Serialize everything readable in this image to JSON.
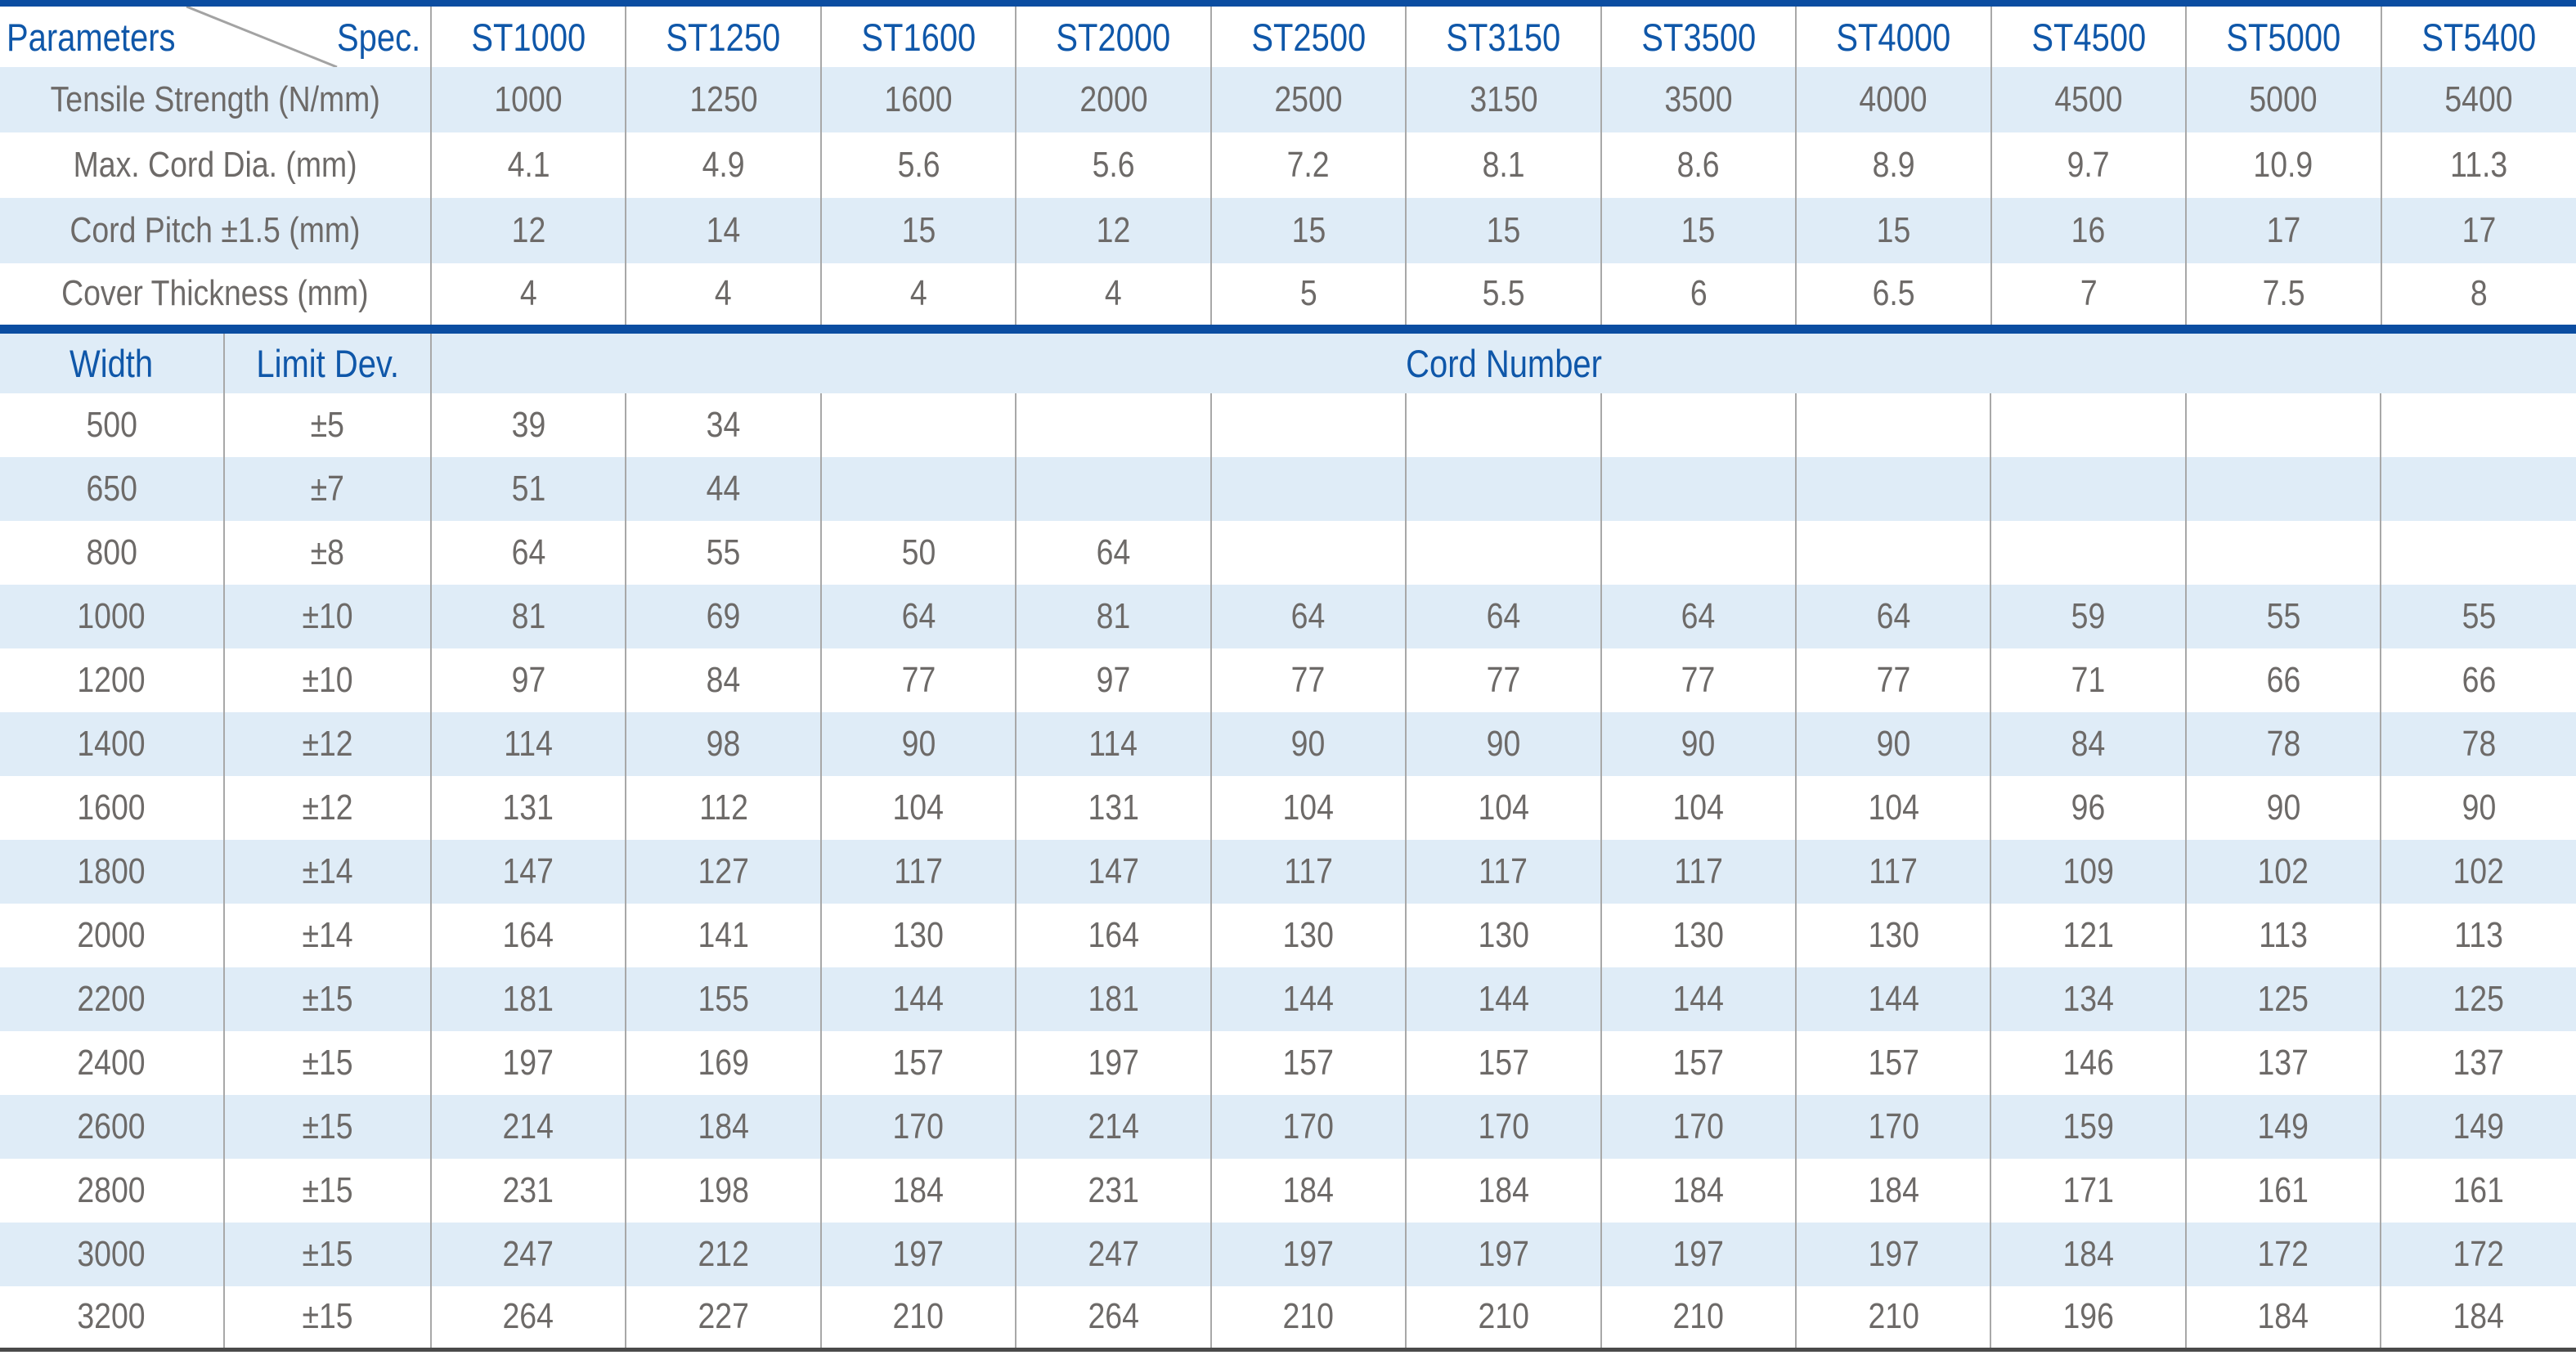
{
  "colors": {
    "accent_blue": "#0B4DA1",
    "header_text_blue": "#0F57A9",
    "row_stripe_blue": "#DFECF7",
    "data_text_gray": "#6D6A68",
    "divider_gray": "#A8A8A8",
    "bottom_rule_gray": "#4A4A4A"
  },
  "spec_table": {
    "corner": {
      "left": "Parameters",
      "right": "Spec."
    },
    "columns": [
      "ST1000",
      "ST1250",
      "ST1600",
      "ST2000",
      "ST2500",
      "ST3150",
      "ST3500",
      "ST4000",
      "ST4500",
      "ST5000",
      "ST5400"
    ],
    "rows": [
      {
        "label": "Tensile Strength (N/mm)",
        "values": [
          "1000",
          "1250",
          "1600",
          "2000",
          "2500",
          "3150",
          "3500",
          "4000",
          "4500",
          "5000",
          "5400"
        ]
      },
      {
        "label": "Max. Cord Dia. (mm)",
        "values": [
          "4.1",
          "4.9",
          "5.6",
          "5.6",
          "7.2",
          "8.1",
          "8.6",
          "8.9",
          "9.7",
          "10.9",
          "11.3"
        ]
      },
      {
        "label": "Cord Pitch ±1.5 (mm)",
        "values": [
          "12",
          "14",
          "15",
          "12",
          "15",
          "15",
          "15",
          "15",
          "16",
          "17",
          "17"
        ]
      },
      {
        "label": "Cover Thickness (mm)",
        "values": [
          "4",
          "4",
          "4",
          "4",
          "5",
          "5.5",
          "6",
          "6.5",
          "7",
          "7.5",
          "8"
        ]
      }
    ]
  },
  "cord_table": {
    "headers": {
      "width": "Width",
      "limit_dev": "Limit Dev.",
      "cord_number": "Cord Number"
    },
    "rows": [
      {
        "width": "500",
        "limit_dev": "±5",
        "values": [
          "39",
          "34",
          "",
          "",
          "",
          "",
          "",
          "",
          "",
          "",
          ""
        ]
      },
      {
        "width": "650",
        "limit_dev": "±7",
        "values": [
          "51",
          "44",
          "",
          "",
          "",
          "",
          "",
          "",
          "",
          "",
          ""
        ]
      },
      {
        "width": "800",
        "limit_dev": "±8",
        "values": [
          "64",
          "55",
          "50",
          "64",
          "",
          "",
          "",
          "",
          "",
          "",
          ""
        ]
      },
      {
        "width": "1000",
        "limit_dev": "±10",
        "values": [
          "81",
          "69",
          "64",
          "81",
          "64",
          "64",
          "64",
          "64",
          "59",
          "55",
          "55"
        ]
      },
      {
        "width": "1200",
        "limit_dev": "±10",
        "values": [
          "97",
          "84",
          "77",
          "97",
          "77",
          "77",
          "77",
          "77",
          "71",
          "66",
          "66"
        ]
      },
      {
        "width": "1400",
        "limit_dev": "±12",
        "values": [
          "114",
          "98",
          "90",
          "114",
          "90",
          "90",
          "90",
          "90",
          "84",
          "78",
          "78"
        ]
      },
      {
        "width": "1600",
        "limit_dev": "±12",
        "values": [
          "131",
          "112",
          "104",
          "131",
          "104",
          "104",
          "104",
          "104",
          "96",
          "90",
          "90"
        ]
      },
      {
        "width": "1800",
        "limit_dev": "±14",
        "values": [
          "147",
          "127",
          "117",
          "147",
          "117",
          "117",
          "117",
          "117",
          "109",
          "102",
          "102"
        ]
      },
      {
        "width": "2000",
        "limit_dev": "±14",
        "values": [
          "164",
          "141",
          "130",
          "164",
          "130",
          "130",
          "130",
          "130",
          "121",
          "113",
          "113"
        ]
      },
      {
        "width": "2200",
        "limit_dev": "±15",
        "values": [
          "181",
          "155",
          "144",
          "181",
          "144",
          "144",
          "144",
          "144",
          "134",
          "125",
          "125"
        ]
      },
      {
        "width": "2400",
        "limit_dev": "±15",
        "values": [
          "197",
          "169",
          "157",
          "197",
          "157",
          "157",
          "157",
          "157",
          "146",
          "137",
          "137"
        ]
      },
      {
        "width": "2600",
        "limit_dev": "±15",
        "values": [
          "214",
          "184",
          "170",
          "214",
          "170",
          "170",
          "170",
          "170",
          "159",
          "149",
          "149"
        ]
      },
      {
        "width": "2800",
        "limit_dev": "±15",
        "values": [
          "231",
          "198",
          "184",
          "231",
          "184",
          "184",
          "184",
          "184",
          "171",
          "161",
          "161"
        ]
      },
      {
        "width": "3000",
        "limit_dev": "±15",
        "values": [
          "247",
          "212",
          "197",
          "247",
          "197",
          "197",
          "197",
          "197",
          "184",
          "172",
          "172"
        ]
      },
      {
        "width": "3200",
        "limit_dev": "±15",
        "values": [
          "264",
          "227",
          "210",
          "264",
          "210",
          "210",
          "210",
          "210",
          "196",
          "184",
          "184"
        ]
      }
    ]
  }
}
